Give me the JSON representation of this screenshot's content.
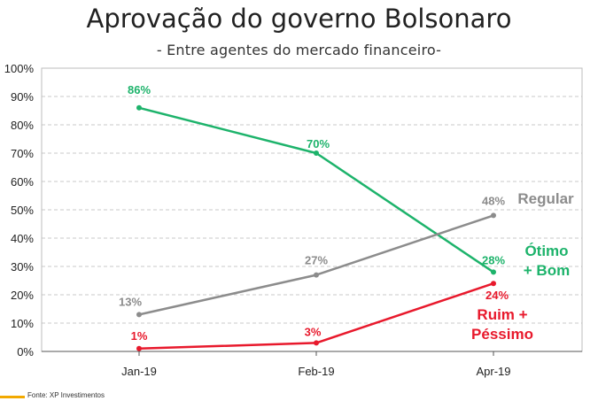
{
  "chart_data": {
    "type": "line",
    "title": "Aprovação do governo Bolsonaro",
    "subtitle": "- Entre agentes do mercado financeiro-",
    "categories": [
      "Jan-19",
      "Feb-19",
      "Apr-19"
    ],
    "ylim": [
      0,
      100
    ],
    "yticks": [
      0,
      10,
      20,
      30,
      40,
      50,
      60,
      70,
      80,
      90,
      100
    ],
    "ytick_labels": [
      "0%",
      "10%",
      "20%",
      "30%",
      "40%",
      "50%",
      "60%",
      "70%",
      "80%",
      "90%",
      "100%"
    ],
    "grid": true,
    "series": [
      {
        "name": "Ótimo + Bom",
        "name_lines": [
          "Ótimo",
          "+ Bom"
        ],
        "values": [
          86,
          70,
          28
        ],
        "labels": [
          "86%",
          "70%",
          "28%"
        ],
        "color": "#1db36b"
      },
      {
        "name": "Regular",
        "name_lines": [
          "Regular"
        ],
        "values": [
          13,
          27,
          48
        ],
        "labels": [
          "13%",
          "27%",
          "48%"
        ],
        "color": "#8c8c8c"
      },
      {
        "name": "Ruim + Péssimo",
        "name_lines": [
          "Ruim +",
          "Péssimo"
        ],
        "values": [
          1,
          3,
          24
        ],
        "labels": [
          "1%",
          "3%",
          "24%"
        ],
        "color": "#e8192c"
      }
    ]
  },
  "footer": {
    "source": "Fonte: XP Investimentos"
  }
}
